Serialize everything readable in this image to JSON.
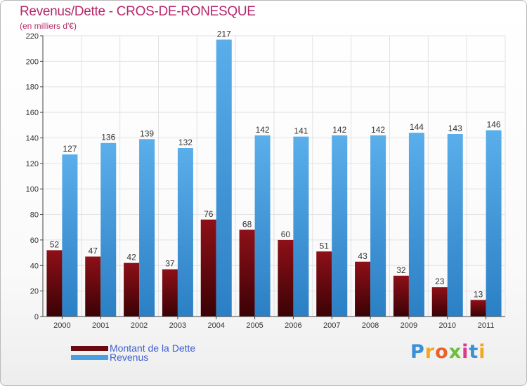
{
  "header": {
    "title": "Revenus/Dette - CROS-DE-RONESQUE",
    "subtitle": "(en milliers d'€)"
  },
  "colors": {
    "dette": "#7a0a12",
    "revenus": "#4a9fe0",
    "title": "#b5276b",
    "legend_text": "#3d5fd1"
  },
  "legend": {
    "dette_label": "Montant de la Dette",
    "revenus_label": "Revenus"
  },
  "logo": {
    "text": "Proxiti"
  },
  "chart_data": {
    "type": "bar",
    "title": "Revenus/Dette - CROS-DE-RONESQUE",
    "subtitle": "(en milliers d'€)",
    "categories": [
      "2000",
      "2001",
      "2002",
      "2003",
      "2004",
      "2005",
      "2006",
      "2007",
      "2008",
      "2009",
      "2010",
      "2011"
    ],
    "series": [
      {
        "name": "Montant de la Dette",
        "color": "#7a0a12",
        "values": [
          52,
          47,
          42,
          37,
          76,
          68,
          60,
          51,
          43,
          32,
          23,
          13
        ]
      },
      {
        "name": "Revenus",
        "color": "#4a9fe0",
        "values": [
          127,
          136,
          139,
          132,
          217,
          142,
          141,
          142,
          142,
          144,
          143,
          146
        ]
      }
    ],
    "ylim": [
      0,
      220
    ],
    "yticks": [
      0,
      20,
      40,
      60,
      80,
      100,
      120,
      140,
      160,
      180,
      200,
      220
    ],
    "grid": true,
    "legend_position": "bottom-left",
    "data_labels": true
  }
}
